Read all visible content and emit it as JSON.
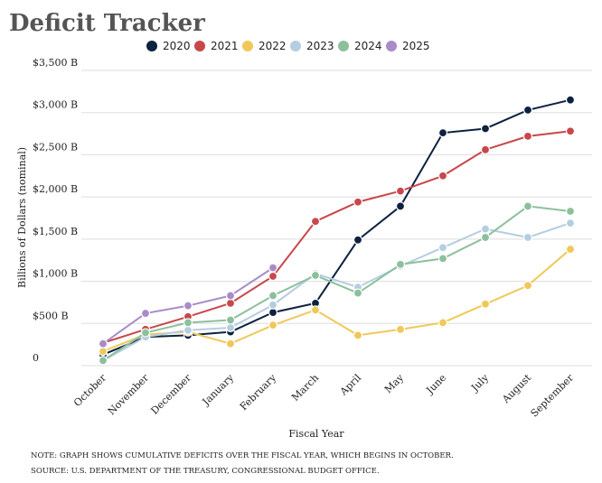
{
  "chart_data": {
    "type": "line",
    "title": "Deficit Tracker",
    "x_label": "Fiscal Year",
    "y_label": "Billions of Dollars (nominal)",
    "notes": [
      "NOTE: GRAPH SHOWS CUMULATIVE DEFICITS OVER THE FISCAL YEAR, WHICH BEGINS IN OCTOBER.",
      "SOURCE: U.S. DEPARTMENT OF THE TREASURY, CONGRESSIONAL BUDGET OFFICE."
    ],
    "categories": [
      "October",
      "November",
      "December",
      "January",
      "February",
      "March",
      "April",
      "May",
      "June",
      "July",
      "August",
      "September"
    ],
    "series": [
      {
        "name": "2020",
        "color": "#0d2240",
        "values": [
          130,
          340,
          360,
          400,
          630,
          740,
          1490,
          1890,
          2760,
          2810,
          3030,
          3150
        ]
      },
      {
        "name": "2021",
        "color": "#c8474b",
        "values": [
          270,
          430,
          580,
          740,
          1060,
          1710,
          1940,
          2070,
          2250,
          2560,
          2720,
          2780
        ]
      },
      {
        "name": "2022",
        "color": "#f0c85a",
        "values": [
          170,
          370,
          400,
          260,
          480,
          660,
          360,
          430,
          510,
          730,
          950,
          1380
        ]
      },
      {
        "name": "2023",
        "color": "#b5cde0",
        "values": [
          60,
          340,
          420,
          450,
          720,
          1090,
          930,
          1180,
          1400,
          1620,
          1520,
          1690
        ]
      },
      {
        "name": "2024",
        "color": "#8cc09c",
        "values": [
          60,
          390,
          510,
          540,
          830,
          1070,
          860,
          1200,
          1270,
          1520,
          1890,
          1830
        ]
      },
      {
        "name": "2025",
        "color": "#a88bc8",
        "values": [
          260,
          620,
          710,
          830,
          1160,
          null,
          null,
          null,
          null,
          null,
          null,
          null
        ]
      }
    ],
    "ylim": [
      0,
      3500
    ],
    "yticks": [
      0,
      {
        "value": 500,
        "label": "$500 B"
      },
      {
        "value": 1000,
        "label": "$1,000 B"
      },
      {
        "value": 1500,
        "label": "$1,500 B"
      },
      {
        "value": 2000,
        "label": "$2,000 B"
      },
      {
        "value": 2500,
        "label": "$2,500 B"
      },
      {
        "value": 3000,
        "label": "$3,000 B"
      },
      {
        "value": 3500,
        "label": "$3,500 B"
      }
    ],
    "grid": true,
    "legend": "top"
  }
}
